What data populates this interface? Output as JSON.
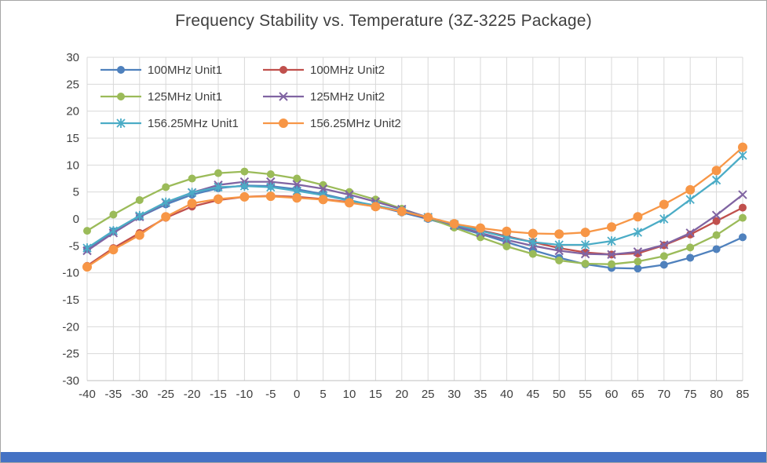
{
  "window": {
    "background": "#ffffff",
    "border_color": "#a6a6a6"
  },
  "colors": {
    "grid": "#d9d9d9",
    "axis_text": "#404040",
    "title_text": "#404040",
    "accent_bar": "#4472c4"
  },
  "chart_data": {
    "type": "line",
    "title": "Frequency Stability vs. Temperature (3Z-3225 Package)",
    "xlabel": "",
    "ylabel": "",
    "xlim": [
      -40,
      85
    ],
    "ylim": [
      -30,
      30
    ],
    "grid": true,
    "legend_position": "top-left-inside",
    "x": [
      -40,
      -35,
      -30,
      -25,
      -20,
      -15,
      -10,
      -5,
      0,
      5,
      10,
      15,
      20,
      25,
      30,
      35,
      40,
      45,
      50,
      55,
      60,
      65,
      70,
      75,
      80,
      85
    ],
    "x_tick_labels": [
      "-40",
      "-35",
      "-30",
      "-25",
      "-20",
      "-15",
      "-10",
      "-5",
      "0",
      "5",
      "10",
      "15",
      "20",
      "25",
      "30",
      "35",
      "40",
      "45",
      "50",
      "55",
      "60",
      "65",
      "70",
      "75",
      "80",
      "85"
    ],
    "y_ticks": [
      -30,
      -25,
      -20,
      -15,
      -10,
      -5,
      0,
      5,
      10,
      15,
      20,
      25,
      30
    ],
    "y_tick_labels": [
      "-30",
      "-25",
      "-20",
      "-15",
      "-10",
      "-5",
      "0",
      "5",
      "10",
      "15",
      "20",
      "25",
      "30"
    ],
    "series": [
      {
        "name": "100MHz Unit1",
        "color": "#4f81bd",
        "marker": "circle",
        "marker_size": 4.5,
        "values": [
          -5.6,
          -2.3,
          0.4,
          2.7,
          4.5,
          5.7,
          6.2,
          6.1,
          5.5,
          4.6,
          3.5,
          2.4,
          1.2,
          0.0,
          -1.4,
          -2.8,
          -4.3,
          -5.8,
          -7.2,
          -8.4,
          -9.1,
          -9.2,
          -8.5,
          -7.2,
          -5.6,
          -3.4
        ]
      },
      {
        "name": "100MHz Unit2",
        "color": "#c0504d",
        "marker": "circle",
        "marker_size": 4.5,
        "values": [
          -8.7,
          -5.4,
          -2.6,
          0.2,
          2.3,
          3.5,
          4.1,
          4.3,
          4.1,
          3.7,
          3.1,
          2.3,
          1.4,
          0.2,
          -1.0,
          -2.1,
          -3.2,
          -4.3,
          -5.4,
          -6.2,
          -6.6,
          -6.4,
          -4.9,
          -2.9,
          -0.4,
          2.1
        ]
      },
      {
        "name": "125MHz Unit1",
        "color": "#9bbb59",
        "marker": "circle",
        "marker_size": 4.5,
        "values": [
          -2.2,
          0.8,
          3.5,
          5.9,
          7.5,
          8.5,
          8.8,
          8.3,
          7.5,
          6.3,
          5.0,
          3.6,
          1.9,
          0.2,
          -1.6,
          -3.4,
          -5.1,
          -6.5,
          -7.7,
          -8.3,
          -8.4,
          -7.9,
          -6.9,
          -5.3,
          -3.0,
          0.2
        ]
      },
      {
        "name": "125MHz Unit2",
        "color": "#8064a2",
        "marker": "x",
        "marker_size": 5,
        "values": [
          -5.9,
          -2.6,
          0.4,
          3.0,
          4.9,
          6.3,
          6.9,
          6.9,
          6.4,
          5.6,
          4.5,
          3.2,
          1.8,
          0.3,
          -1.2,
          -2.6,
          -3.9,
          -5.0,
          -5.9,
          -6.5,
          -6.6,
          -6.1,
          -4.8,
          -2.6,
          0.7,
          4.5
        ]
      },
      {
        "name": "156.25MHz Unit1",
        "color": "#4bacc6",
        "marker": "asterisk",
        "marker_size": 5,
        "values": [
          -5.4,
          -2.2,
          0.6,
          3.1,
          4.9,
          5.9,
          6.1,
          5.9,
          5.2,
          4.4,
          3.4,
          2.5,
          1.5,
          0.3,
          -1.0,
          -2.2,
          -3.4,
          -4.3,
          -4.8,
          -4.8,
          -4.1,
          -2.5,
          0.0,
          3.6,
          7.2,
          11.8
        ]
      },
      {
        "name": "156.25MHz Unit2",
        "color": "#f79646",
        "marker": "circle",
        "marker_size": 5.5,
        "values": [
          -8.9,
          -5.7,
          -3.0,
          0.4,
          2.9,
          3.7,
          4.1,
          4.2,
          3.9,
          3.6,
          3.0,
          2.3,
          1.4,
          0.3,
          -0.9,
          -1.7,
          -2.3,
          -2.7,
          -2.8,
          -2.5,
          -1.5,
          0.4,
          2.7,
          5.4,
          9.0,
          13.3
        ]
      }
    ]
  }
}
